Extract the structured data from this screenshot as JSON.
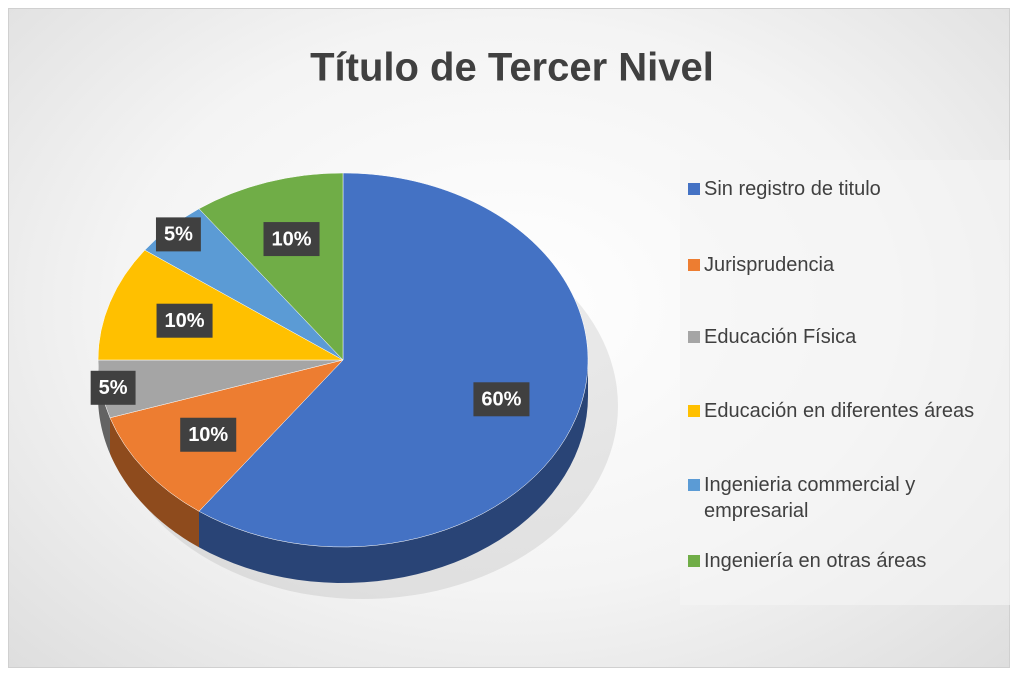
{
  "chart_data": {
    "type": "pie",
    "title": "Título de Tercer Nivel",
    "categories": [
      "Sin registro de titulo",
      "Jurisprudencia",
      "Educación Física",
      "Educación en diferentes áreas",
      "Ingenieria commercial y empresarial",
      "Ingeniería en otras áreas"
    ],
    "values": [
      60,
      10,
      5,
      10,
      5,
      10
    ],
    "value_labels": [
      "60%",
      "10%",
      "5%",
      "10%",
      "5%",
      "10%"
    ],
    "colors": [
      "#4472c4",
      "#ed7d31",
      "#a5a5a5",
      "#ffc000",
      "#5b9bd5",
      "#70ad47"
    ],
    "legend": "right"
  }
}
